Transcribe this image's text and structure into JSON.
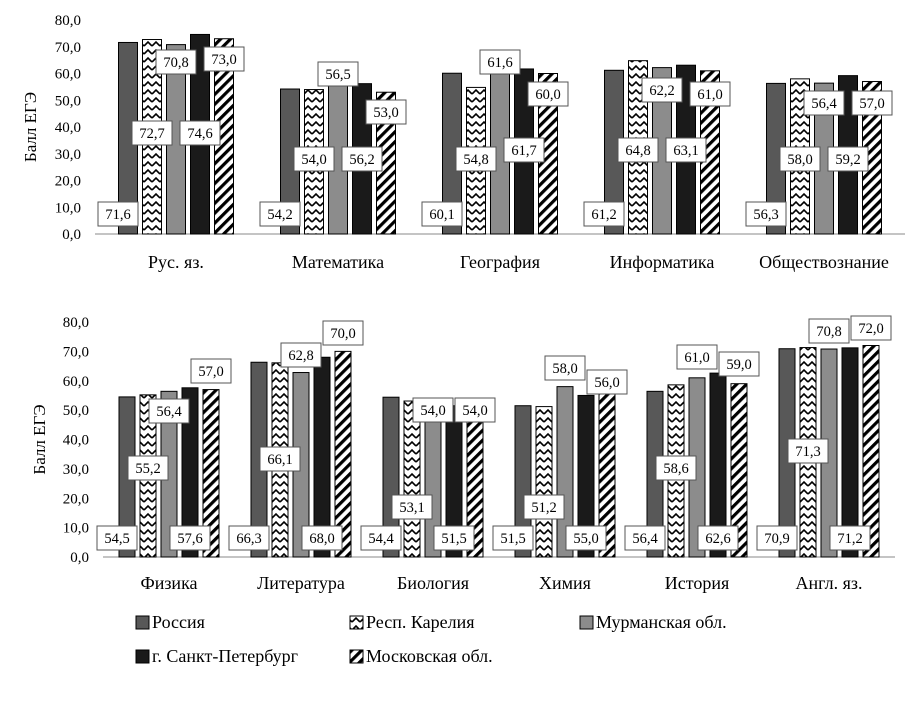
{
  "chart_data": {
    "type": "bar",
    "legend_position": "bottom",
    "series_names": [
      "Россия",
      "Респ. Карелия",
      "Мурманская обл.",
      "г. Санкт-Петербург",
      "Московская обл."
    ],
    "colors": {
      "russia": "#585858",
      "karelia_pattern": "zigzag",
      "murmansk": "#8c8c8c",
      "spb": "#1a1a1a",
      "moscow_pattern": "diagonal"
    },
    "charts": [
      {
        "ylabel": "Балл ЕГЭ",
        "ylim": [
          0,
          80
        ],
        "ytick_step": 10,
        "yticks": [
          "0,0",
          "10,0",
          "20,0",
          "30,0",
          "40,0",
          "50,0",
          "60,0",
          "70,0",
          "80,0"
        ],
        "categories": [
          "Рус.  яз.",
          "Математика",
          "География",
          "Информатика",
          "Обществознание"
        ],
        "series": [
          {
            "name": "Россия",
            "values": [
              71.6,
              54.2,
              60.1,
              61.2,
              56.3
            ],
            "labels": [
              "71,6",
              "54,2",
              "60,1",
              "61,2",
              "56,3"
            ]
          },
          {
            "name": "Респ. Карелия",
            "values": [
              72.7,
              54.0,
              54.8,
              64.8,
              58.0
            ],
            "labels": [
              "72,7",
              "54,0",
              "54,8",
              "64,8",
              "58,0"
            ]
          },
          {
            "name": "Мурманская обл.",
            "values": [
              70.8,
              56.5,
              61.6,
              62.2,
              56.4
            ],
            "labels": [
              "70,8",
              "56,5",
              "61,6",
              "62,2",
              "56,4"
            ]
          },
          {
            "name": "г. Санкт-Петербург",
            "values": [
              74.6,
              56.2,
              61.7,
              63.1,
              59.2
            ],
            "labels": [
              "74,6",
              "56,2",
              "61,7",
              "63,1",
              "59,2"
            ]
          },
          {
            "name": "Московская обл.",
            "values": [
              73.0,
              53.0,
              60.0,
              61.0,
              57.0
            ],
            "labels": [
              "73,0",
              "53,0",
              "60,0",
              "61,0",
              "57,0"
            ]
          }
        ]
      },
      {
        "ylabel": "Балл ЕГЭ",
        "ylim": [
          0,
          80
        ],
        "ytick_step": 10,
        "yticks": [
          "0,0",
          "10,0",
          "20,0",
          "30,0",
          "40,0",
          "50,0",
          "60,0",
          "70,0",
          "80,0"
        ],
        "categories": [
          "Физика",
          "Литература",
          "Биология",
          "Химия",
          "История",
          "Англ. яз."
        ],
        "series": [
          {
            "name": "Россия",
            "values": [
              54.5,
              66.3,
              54.4,
              51.5,
              56.4,
              70.9
            ],
            "labels": [
              "54,5",
              "66,3",
              "54,4",
              "51,5",
              "56,4",
              "70,9"
            ]
          },
          {
            "name": "Респ. Карелия",
            "values": [
              55.2,
              66.1,
              53.1,
              51.2,
              58.6,
              71.3
            ],
            "labels": [
              "55,2",
              "66,1",
              "53,1",
              "51,2",
              "58,6",
              "71,3"
            ]
          },
          {
            "name": "Мурманская обл.",
            "values": [
              56.4,
              62.8,
              54.0,
              58.0,
              61.0,
              70.8
            ],
            "labels": [
              "56,4",
              "62,8",
              "54,0",
              "58,0",
              "61,0",
              "70,8"
            ]
          },
          {
            "name": "г. Санкт-Петербург",
            "values": [
              57.6,
              68.0,
              51.5,
              55.0,
              62.6,
              71.2
            ],
            "labels": [
              "57,6",
              "68,0",
              "51,5",
              "55,0",
              "62,6",
              "71,2"
            ]
          },
          {
            "name": "Московская обл.",
            "values": [
              57.0,
              70.0,
              54.0,
              56.0,
              59.0,
              72.0
            ],
            "labels": [
              "57,0",
              "70,0",
              "54,0",
              "56,0",
              "59,0",
              "72,0"
            ]
          }
        ]
      }
    ]
  }
}
